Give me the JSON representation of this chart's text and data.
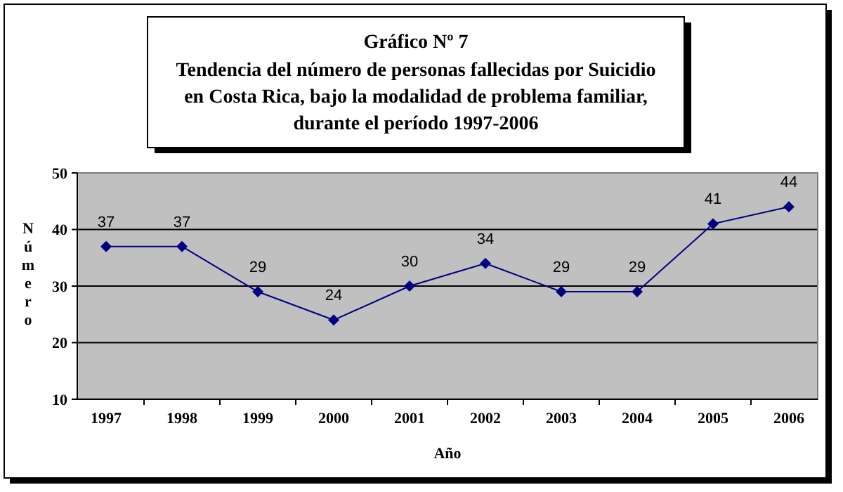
{
  "chart_data": {
    "type": "line",
    "title": "Gráfico Nº 7",
    "subtitle": "Tendencia del número de personas fallecidas por Suicidio\nen Costa Rica, bajo la modalidad de problema familiar,\ndurante el período 1997-2006",
    "xlabel": "Año",
    "ylabel": "Número",
    "categories": [
      "1997",
      "1998",
      "1999",
      "2000",
      "2001",
      "2002",
      "2003",
      "2004",
      "2005",
      "2006"
    ],
    "series": [
      {
        "color": "#000080",
        "values": [
          37,
          37,
          29,
          24,
          30,
          34,
          29,
          29,
          41,
          44
        ]
      }
    ],
    "ylim": [
      10,
      50
    ],
    "yticks": [
      10,
      20,
      30,
      40,
      50
    ],
    "grid": "y",
    "marker": "diamond",
    "line_style": "solid",
    "data_labels": true
  }
}
